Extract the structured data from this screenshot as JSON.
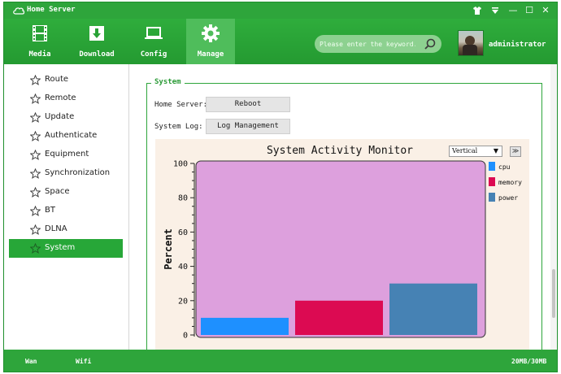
{
  "window": {
    "title": "Home Server"
  },
  "title_controls": {
    "shirt_icon": "shirt-icon",
    "menu_icon": "dropdown-menu-icon",
    "minimize": "—",
    "maximize": "☐",
    "close": "✕"
  },
  "nav": {
    "tabs": [
      {
        "label": "Media",
        "icon": "film-icon"
      },
      {
        "label": "Download",
        "icon": "download-icon"
      },
      {
        "label": "Config",
        "icon": "laptop-icon"
      },
      {
        "label": "Manage",
        "icon": "gear-icon",
        "active": true
      }
    ]
  },
  "search": {
    "placeholder": "Please enter the keyword..."
  },
  "user": {
    "name": "administrator"
  },
  "sidebar": {
    "items": [
      {
        "label": "Route"
      },
      {
        "label": "Remote"
      },
      {
        "label": "Update"
      },
      {
        "label": "Authenticate"
      },
      {
        "label": "Equipment"
      },
      {
        "label": "Synchronization"
      },
      {
        "label": "Space"
      },
      {
        "label": "BT"
      },
      {
        "label": "DLNA"
      },
      {
        "label": "System",
        "active": true
      }
    ]
  },
  "panel": {
    "legend": "System",
    "home_server_label": "Home Server:",
    "reboot_label": "Reboot",
    "system_log_label": "System Log:",
    "log_management_label": "Log Management"
  },
  "chart_controls": {
    "orientation_value": "Vertical",
    "expand_symbol": "≫"
  },
  "chart_data": {
    "type": "bar",
    "title": "System Activity Monitor",
    "ylabel": "Percent",
    "xlabel": "",
    "ylim": [
      0,
      100
    ],
    "yticks": [
      0,
      20,
      40,
      60,
      80,
      100
    ],
    "legend_position": "right",
    "plot_background": "#dda0dd",
    "chart_background": "#faf0e6",
    "series": [
      {
        "name": "cpu",
        "value": 10,
        "color": "#1e90ff"
      },
      {
        "name": "memory",
        "value": 20,
        "color": "#dc0a52"
      },
      {
        "name": "power",
        "value": 30,
        "color": "#4682b4"
      }
    ]
  },
  "status": {
    "wan": "Wan",
    "wifi": "Wifi",
    "storage": "20MB/30MB"
  },
  "colors": {
    "brand_green": "#2ea53b",
    "active_tab": "#4fbd5b",
    "sidebar_active": "#27a738"
  }
}
